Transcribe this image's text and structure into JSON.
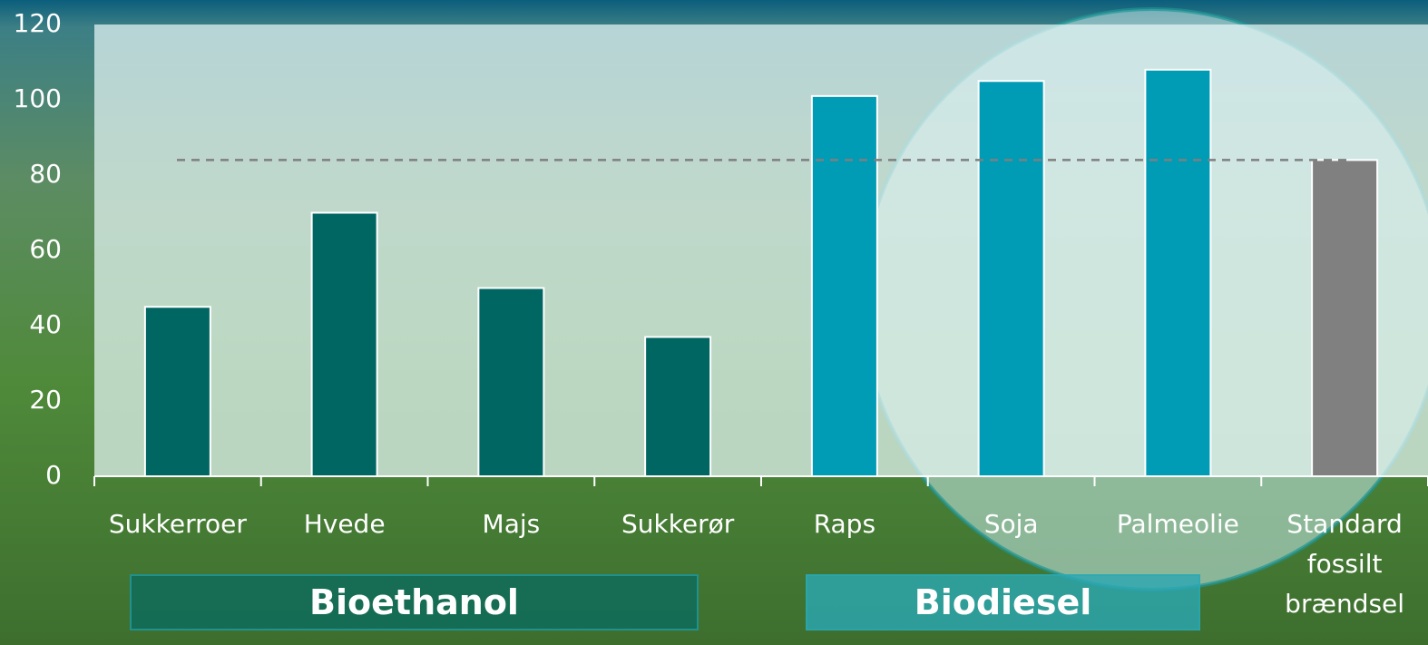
{
  "chart_data": {
    "type": "bar",
    "categories": [
      "Sukkerroer",
      "Hvede",
      "Majs",
      "Sukkerør",
      "Raps",
      "Soja",
      "Palmeolie",
      "Standard fossilt brændsel"
    ],
    "values": [
      45,
      70,
      50,
      37,
      101,
      105,
      108,
      84
    ],
    "colors": [
      "#006661",
      "#006661",
      "#006661",
      "#006661",
      "#009bb5",
      "#009bb5",
      "#009bb5",
      "#808080"
    ],
    "reference_line": 84,
    "ylim": [
      0,
      120
    ],
    "yticks": [
      0,
      20,
      40,
      60,
      80,
      100,
      120
    ],
    "groups": [
      {
        "label": "Bioethanol",
        "color": "#0b6b5e"
      },
      {
        "label": "Biodiesel",
        "color": "#2aa7b3"
      }
    ]
  }
}
